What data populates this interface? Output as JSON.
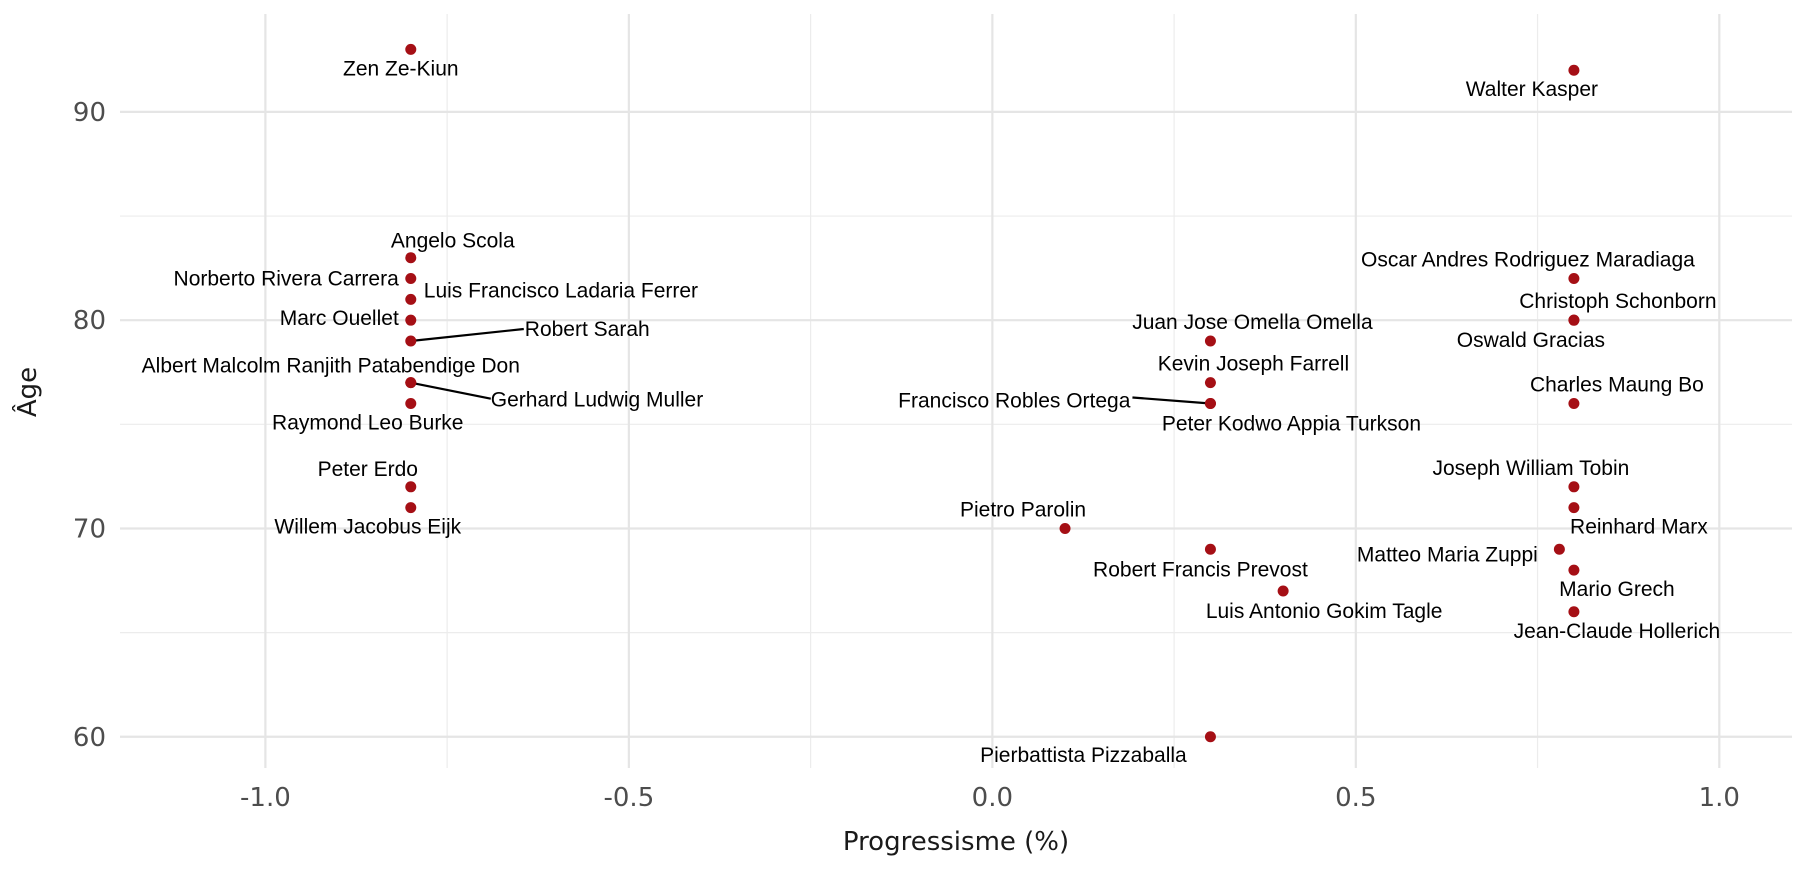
{
  "chart_data": {
    "type": "scatter",
    "xlabel": "Progressisme (%)",
    "ylabel": "Âge",
    "xlim": [
      -1.2,
      1.1
    ],
    "ylim": [
      58.5,
      94.7
    ],
    "x_ticks": [
      -1.0,
      -0.5,
      0.0,
      0.5,
      1.0
    ],
    "x_tick_labels": [
      "-1.0",
      "-0.5",
      "0.0",
      "0.5",
      "1.0"
    ],
    "y_ticks": [
      60,
      70,
      80,
      90
    ],
    "y_tick_labels": [
      "60",
      "70",
      "80",
      "90"
    ],
    "grid": true,
    "point_color": "#a50f15",
    "points": [
      {
        "label": "Zen Ze-Kiun",
        "x": -0.8,
        "y": 93
      },
      {
        "label": "Walter Kasper",
        "x": 0.8,
        "y": 92
      },
      {
        "label": "Angelo Scola",
        "x": -0.8,
        "y": 83
      },
      {
        "label": "Norberto Rivera Carrera",
        "x": -0.8,
        "y": 82
      },
      {
        "label": "Luis Francisco Ladaria Ferrer",
        "x": -0.8,
        "y": 81
      },
      {
        "label": "Marc Ouellet",
        "x": -0.8,
        "y": 80
      },
      {
        "label": "Robert Sarah",
        "x": -0.8,
        "y": 79
      },
      {
        "label": "Albert Malcolm Ranjith Patabendige Don",
        "x": -0.8,
        "y": 77
      },
      {
        "label": "Gerhard Ludwig Muller",
        "x": -0.8,
        "y": 77
      },
      {
        "label": "Raymond Leo Burke",
        "x": -0.8,
        "y": 76
      },
      {
        "label": "Peter Erdo",
        "x": -0.8,
        "y": 72
      },
      {
        "label": "Willem Jacobus Eijk",
        "x": -0.8,
        "y": 71
      },
      {
        "label": "Oscar Andres Rodriguez Maradiaga",
        "x": 0.8,
        "y": 82
      },
      {
        "label": "Christoph Schonborn",
        "x": 0.8,
        "y": 80
      },
      {
        "label": "Oswald Gracias",
        "x": 0.8,
        "y": 80
      },
      {
        "label": "Juan Jose Omella Omella",
        "x": 0.3,
        "y": 79
      },
      {
        "label": "Kevin Joseph Farrell",
        "x": 0.3,
        "y": 77
      },
      {
        "label": "Francisco Robles Ortega",
        "x": 0.3,
        "y": 76
      },
      {
        "label": "Peter Kodwo Appia Turkson",
        "x": 0.3,
        "y": 76
      },
      {
        "label": "Charles Maung Bo",
        "x": 0.8,
        "y": 76
      },
      {
        "label": "Joseph William Tobin",
        "x": 0.8,
        "y": 72
      },
      {
        "label": "Reinhard Marx",
        "x": 0.8,
        "y": 71
      },
      {
        "label": "Pietro Parolin",
        "x": 0.1,
        "y": 70
      },
      {
        "label": "Robert Francis Prevost",
        "x": 0.3,
        "y": 69
      },
      {
        "label": "Matteo Maria Zuppi",
        "x": 0.78,
        "y": 69
      },
      {
        "label": "Mario Grech",
        "x": 0.8,
        "y": 68
      },
      {
        "label": "Luis Antonio Gokim Tagle",
        "x": 0.4,
        "y": 67
      },
      {
        "label": "Jean-Claude Hollerich",
        "x": 0.8,
        "y": 66
      },
      {
        "label": "Pierbattista Pizzaballa",
        "x": 0.3,
        "y": 60
      }
    ]
  }
}
